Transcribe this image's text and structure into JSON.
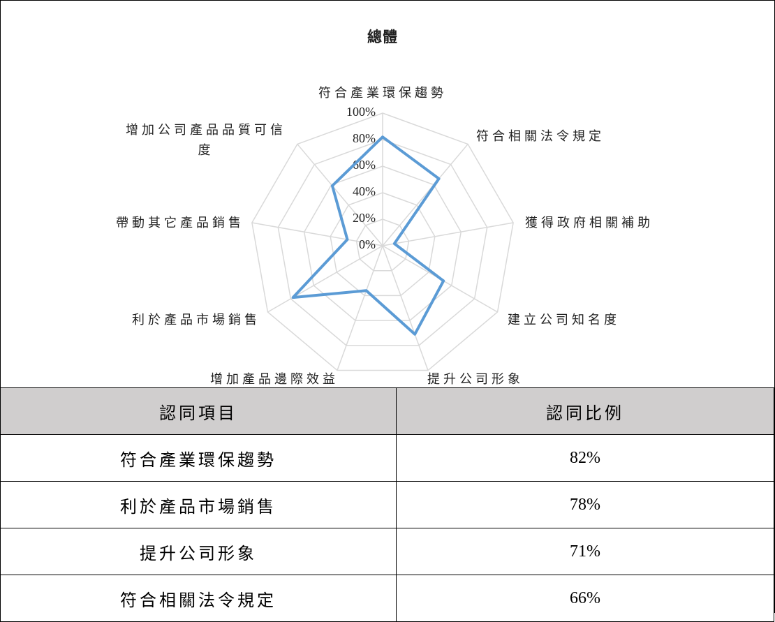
{
  "chart_data": {
    "type": "radar",
    "title": "總體",
    "categories": [
      "符合產業環保趨勢",
      "符合相關法令規定",
      "獲得政府相關補助",
      "建立公司知名度",
      "提升公司形象",
      "增加產品邊際效益",
      "利於產品市場銷售",
      "帶動其它產品銷售",
      "增加公司產品品質可信度"
    ],
    "values": [
      82,
      66,
      9,
      53,
      71,
      36,
      78,
      27,
      59
    ],
    "color": "#5b9bd5",
    "ylim": [
      0,
      100
    ],
    "yticks": [
      {
        "value": 0,
        "label": "0%"
      },
      {
        "value": 20,
        "label": "20%"
      },
      {
        "value": 40,
        "label": "40%"
      },
      {
        "value": 60,
        "label": "60%"
      },
      {
        "value": 80,
        "label": "80%"
      },
      {
        "value": 100,
        "label": "100%"
      }
    ],
    "grid": true
  },
  "table": {
    "header": [
      "認同項目",
      "認同比例"
    ],
    "rows": [
      [
        "符合產業環保趨勢",
        "82%"
      ],
      [
        "利於產品市場銷售",
        "78%"
      ],
      [
        "提升公司形象",
        "71%"
      ],
      [
        "符合相關法令規定",
        "66%"
      ]
    ]
  }
}
